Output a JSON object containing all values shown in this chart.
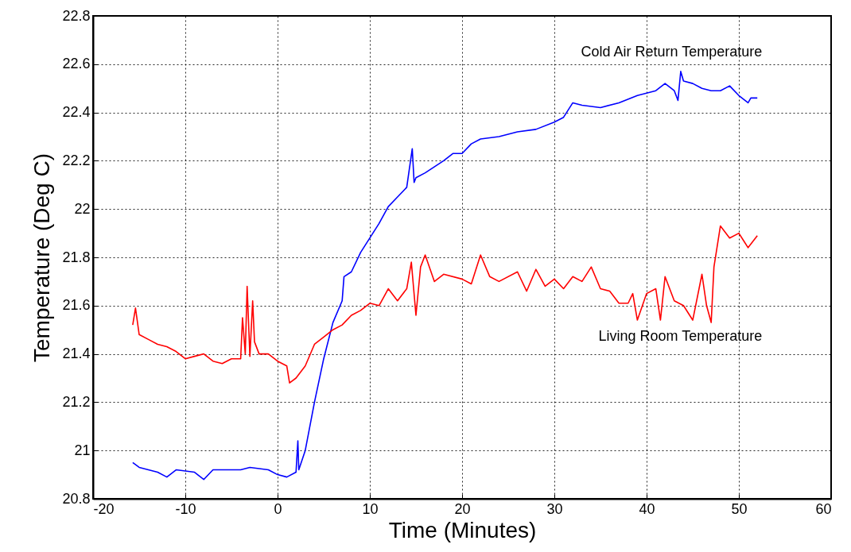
{
  "chart_data": {
    "type": "line",
    "xlabel": "Time (Minutes)",
    "ylabel": "Temperature (Deg C)",
    "xlim": [
      -20,
      60
    ],
    "xticks": [
      -20,
      -10,
      0,
      10,
      20,
      30,
      40,
      50,
      60
    ],
    "ylim": [
      20.8,
      22.8
    ],
    "yticks": [
      20.8,
      21,
      21.2,
      21.4,
      21.6,
      21.8,
      22,
      22.2,
      22.4,
      22.6,
      22.8
    ],
    "grid": true,
    "line_style": "solid",
    "series": [
      {
        "name": "Cold Air Return Temperature",
        "color": "#0000ff",
        "x": [
          -15.7,
          -15,
          -13,
          -12,
          -11,
          -9,
          -8,
          -7,
          -4,
          -3,
          -1,
          0,
          1,
          2,
          2.2,
          2.3,
          3,
          4,
          5,
          6,
          7,
          7.2,
          8,
          9,
          10,
          11,
          12,
          13,
          14,
          14.6,
          14.8,
          15,
          16,
          18,
          19,
          20,
          21,
          22,
          24,
          26,
          28,
          30,
          31,
          32,
          33,
          35,
          37,
          39,
          41,
          42,
          43,
          43.4,
          43.7,
          44,
          45,
          46,
          47,
          48,
          49,
          50,
          51,
          51.3,
          52
        ],
        "values": [
          20.95,
          20.93,
          20.91,
          20.89,
          20.92,
          20.91,
          20.88,
          20.92,
          20.92,
          20.93,
          20.92,
          20.9,
          20.89,
          20.91,
          21.04,
          20.92,
          21.0,
          21.2,
          21.38,
          21.53,
          21.62,
          21.72,
          21.74,
          21.82,
          21.88,
          21.94,
          22.01,
          22.05,
          22.09,
          22.25,
          22.11,
          22.13,
          22.15,
          22.2,
          22.23,
          22.23,
          22.27,
          22.29,
          22.3,
          22.32,
          22.33,
          22.36,
          22.38,
          22.44,
          22.43,
          22.42,
          22.44,
          22.47,
          22.49,
          22.52,
          22.49,
          22.45,
          22.57,
          22.53,
          22.52,
          22.5,
          22.49,
          22.49,
          22.51,
          22.47,
          22.44,
          22.46,
          22.46
        ]
      },
      {
        "name": "Living Room Temperature",
        "color": "#ff0000",
        "x": [
          -15.7,
          -15.4,
          -15,
          -14,
          -13,
          -12,
          -11,
          -10,
          -9,
          -8,
          -7,
          -6,
          -5,
          -4,
          -3.8,
          -3.5,
          -3.3,
          -3,
          -2.7,
          -2.5,
          -2,
          -1,
          0,
          0.5,
          1,
          1.3,
          2,
          3,
          4,
          5,
          6,
          7,
          8,
          9,
          10,
          11,
          12,
          13,
          14,
          14.5,
          15,
          15.5,
          16,
          17,
          18,
          20,
          21,
          22,
          23,
          24,
          26,
          27,
          28,
          29,
          30,
          31,
          32,
          33,
          34,
          35,
          36,
          37,
          38,
          38.5,
          39,
          40,
          41,
          41.5,
          42,
          43,
          44,
          45,
          46,
          46.5,
          47,
          47.3,
          48,
          49,
          50,
          50.5,
          51,
          52
        ],
        "values": [
          21.52,
          21.59,
          21.48,
          21.46,
          21.44,
          21.43,
          21.41,
          21.38,
          21.39,
          21.4,
          21.37,
          21.36,
          21.38,
          21.38,
          21.55,
          21.4,
          21.68,
          21.39,
          21.62,
          21.45,
          21.4,
          21.4,
          21.37,
          21.36,
          21.35,
          21.28,
          21.3,
          21.35,
          21.44,
          21.47,
          21.5,
          21.52,
          21.56,
          21.58,
          21.61,
          21.6,
          21.67,
          21.62,
          21.67,
          21.78,
          21.56,
          21.76,
          21.81,
          21.7,
          21.73,
          21.71,
          21.69,
          21.81,
          21.72,
          21.7,
          21.74,
          21.66,
          21.75,
          21.68,
          21.71,
          21.67,
          21.72,
          21.7,
          21.76,
          21.67,
          21.66,
          21.61,
          21.61,
          21.65,
          21.54,
          21.65,
          21.67,
          21.54,
          21.72,
          21.62,
          21.6,
          21.54,
          21.73,
          21.6,
          21.53,
          21.76,
          21.93,
          21.88,
          21.9,
          21.87,
          21.84,
          21.89
        ]
      }
    ]
  }
}
